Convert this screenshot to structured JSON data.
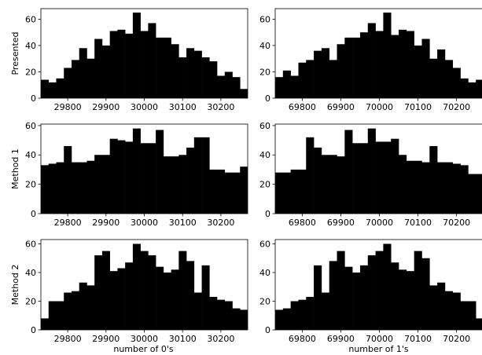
{
  "chart_data": [
    {
      "type": "histogram",
      "ylabel": "Presented",
      "color": "#000000",
      "bins": [
        29730,
        29750,
        29770,
        29790,
        29810,
        29830,
        29850,
        29870,
        29890,
        29910,
        29930,
        29950,
        29970,
        29990,
        30010,
        30030,
        30050,
        30070,
        30090,
        30110,
        30130,
        30150,
        30170,
        30190,
        30210,
        30230,
        30250,
        30270
      ],
      "counts": [
        14,
        12,
        15,
        23,
        29,
        38,
        30,
        45,
        40,
        51,
        52,
        49,
        65,
        51,
        57,
        46,
        46,
        41,
        31,
        38,
        36,
        31,
        28,
        17,
        20,
        16,
        7
      ],
      "xlim": [
        29730,
        30270
      ],
      "xticks": [
        29800,
        29900,
        30000,
        30100,
        30200
      ],
      "ylim": [
        0,
        68
      ],
      "yticks": [
        0,
        20,
        40,
        60
      ]
    },
    {
      "type": "histogram",
      "color": "#000000",
      "bins": [
        69730,
        69750,
        69770,
        69790,
        69810,
        69830,
        69850,
        69870,
        69890,
        69910,
        69930,
        69950,
        69970,
        69990,
        70010,
        70030,
        70050,
        70070,
        70090,
        70110,
        70130,
        70150,
        70170,
        70190,
        70210,
        70230,
        70250,
        70270
      ],
      "counts": [
        16,
        21,
        17,
        27,
        29,
        36,
        38,
        29,
        41,
        46,
        46,
        50,
        57,
        51,
        65,
        48,
        52,
        51,
        40,
        45,
        30,
        37,
        29,
        23,
        15,
        12,
        14
      ],
      "xlim": [
        69730,
        70270
      ],
      "xticks": [
        69800,
        69900,
        70000,
        70100,
        70200
      ],
      "ylim": [
        0,
        68
      ],
      "yticks": [
        0,
        20,
        40,
        60
      ]
    },
    {
      "type": "histogram",
      "ylabel": "Method 1",
      "color": "#000000",
      "bins": [
        29730,
        29750,
        29770,
        29790,
        29810,
        29830,
        29850,
        29870,
        29890,
        29910,
        29930,
        29950,
        29970,
        29990,
        30010,
        30030,
        30050,
        30070,
        30090,
        30110,
        30130,
        30150,
        30170,
        30190,
        30210,
        30230,
        30250,
        30270
      ],
      "counts": [
        33,
        34,
        35,
        46,
        35,
        35,
        36,
        40,
        40,
        51,
        50,
        49,
        58,
        48,
        48,
        57,
        39,
        39,
        40,
        45,
        52,
        52,
        30,
        30,
        28,
        28,
        32
      ],
      "xlim": [
        29730,
        30270
      ],
      "xticks": [
        29800,
        29900,
        30000,
        30100,
        30200
      ],
      "ylim": [
        0,
        61
      ],
      "yticks": [
        0,
        20,
        40,
        60
      ]
    },
    {
      "type": "histogram",
      "color": "#000000",
      "bins": [
        69730,
        69750,
        69770,
        69790,
        69810,
        69830,
        69850,
        69870,
        69890,
        69910,
        69930,
        69950,
        69970,
        69990,
        70010,
        70030,
        70050,
        70070,
        70090,
        70110,
        70130,
        70150,
        70170,
        70190,
        70210,
        70230,
        70250,
        70270
      ],
      "counts": [
        28,
        28,
        30,
        30,
        52,
        45,
        40,
        40,
        39,
        57,
        48,
        48,
        58,
        49,
        49,
        51,
        40,
        36,
        36,
        35,
        46,
        35,
        35,
        34,
        33,
        27,
        27
      ],
      "xlim": [
        69730,
        70270
      ],
      "xticks": [
        69800,
        69900,
        70000,
        70100,
        70200
      ],
      "ylim": [
        0,
        61
      ],
      "yticks": [
        0,
        20,
        40,
        60
      ]
    },
    {
      "type": "histogram",
      "ylabel": "Method 2",
      "xlabel": "number of 0's",
      "color": "#000000",
      "bins": [
        29730,
        29750,
        29770,
        29790,
        29810,
        29830,
        29850,
        29870,
        29890,
        29910,
        29930,
        29950,
        29970,
        29990,
        30010,
        30030,
        30050,
        30070,
        30090,
        30110,
        30130,
        30150,
        30170,
        30190,
        30210,
        30230,
        30250,
        30270
      ],
      "counts": [
        8,
        20,
        20,
        26,
        27,
        33,
        31,
        52,
        55,
        41,
        43,
        47,
        60,
        55,
        52,
        44,
        40,
        42,
        55,
        48,
        26,
        45,
        23,
        21,
        20,
        15,
        14
      ],
      "xlim": [
        29730,
        30270
      ],
      "xticks": [
        29800,
        29900,
        30000,
        30100,
        30200
      ],
      "ylim": [
        0,
        63
      ],
      "yticks": [
        0,
        20,
        40,
        60
      ]
    },
    {
      "type": "histogram",
      "xlabel": "number of 1's",
      "color": "#000000",
      "bins": [
        69730,
        69750,
        69770,
        69790,
        69810,
        69830,
        69850,
        69870,
        69890,
        69910,
        69930,
        69950,
        69970,
        69990,
        70010,
        70030,
        70050,
        70070,
        70090,
        70110,
        70130,
        70150,
        70170,
        70190,
        70210,
        70230,
        70250,
        70270
      ],
      "counts": [
        14,
        15,
        20,
        21,
        23,
        45,
        26,
        48,
        55,
        44,
        40,
        45,
        52,
        55,
        60,
        47,
        42,
        41,
        55,
        50,
        31,
        33,
        27,
        26,
        20,
        20,
        8
      ],
      "xlim": [
        69730,
        70270
      ],
      "xticks": [
        69800,
        69900,
        70000,
        70100,
        70200
      ],
      "ylim": [
        0,
        63
      ],
      "yticks": [
        0,
        20,
        40,
        60
      ]
    }
  ]
}
